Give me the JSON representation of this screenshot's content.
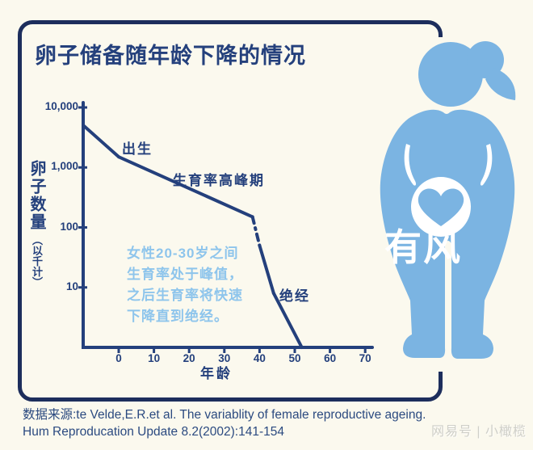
{
  "colors": {
    "bg": "#fbf9ee",
    "navy": "#24407c",
    "border_navy": "#1d2e5c",
    "figure_blue": "#7bb4e2",
    "pale_blue": "#8ec5ec",
    "source_navy": "#2b4a80",
    "watermark_grey": "#cfcfc8"
  },
  "title": "卵子储备随年龄下降的情况",
  "chart_data": {
    "type": "line",
    "title": "卵子储备随年龄下降的情况",
    "xlabel": "年龄",
    "ylabel": "卵子数量（以千计）",
    "y_scale": "log",
    "xlim": [
      -11,
      72
    ],
    "ylim": [
      1,
      15000
    ],
    "grid": false,
    "x_ticks": [
      0,
      10,
      20,
      30,
      40,
      50,
      60,
      70
    ],
    "y_ticks": [
      {
        "label": "10,000",
        "value": 10000
      },
      {
        "label": "1,000",
        "value": 1000
      },
      {
        "label": "100",
        "value": 100
      },
      {
        "label": "10",
        "value": 10
      }
    ],
    "series": [
      {
        "name": "卵子数量（以千计）",
        "points": [
          {
            "age": -10,
            "value": 5000
          },
          {
            "age": 0,
            "value": 1500
          },
          {
            "age": 38,
            "value": 150
          },
          {
            "age": 40,
            "value": 50
          },
          {
            "age": 44,
            "value": 8
          },
          {
            "age": 52,
            "value": 1
          }
        ],
        "dashed_segment_index": 2
      }
    ],
    "annotations": [
      {
        "id": "birth",
        "text": "出生",
        "age": 1,
        "value": 2500
      },
      {
        "id": "peak-fertility",
        "text": "生育率高峰期",
        "age": 18,
        "value": 600
      },
      {
        "id": "menopause",
        "text": "绝经",
        "age": 47,
        "value": 10
      },
      {
        "id": "note",
        "text": "女性20-30岁之间\n生育率处于峰值，\n之后生育率将快速\n下降直到绝经。",
        "age": 2,
        "value": 60
      }
    ]
  },
  "y_axis_title": {
    "main": "卵子数量",
    "sub": "（以千计）"
  },
  "x_axis_title": "年龄",
  "source": {
    "line1": "数据来源:te Velde,E.R.et al. The variablity of female reproductive ageing.",
    "line2": "Hum Reproducation Update 8.2(2002):141-154"
  },
  "watermarks": {
    "overlay": "有风",
    "credit": "网易号 | 小橄榄"
  }
}
